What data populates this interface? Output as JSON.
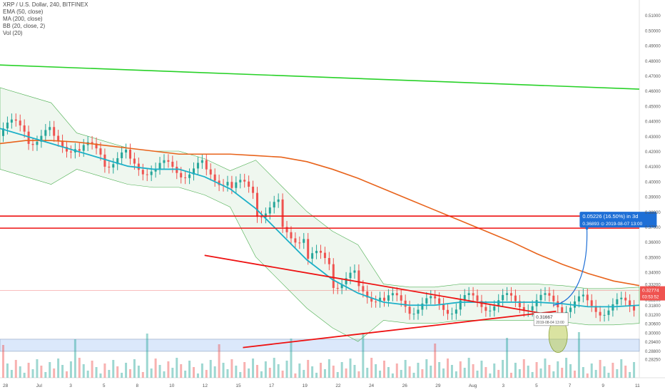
{
  "legend": {
    "title": "XRP / U.S. Dollar, 240, BITFINEX",
    "ema": "EMA (50, close)",
    "ma": "MA (200, close)",
    "bb": "BB (20, close, 2)",
    "vol": "Vol (20)"
  },
  "colors": {
    "bull": "#26a69a",
    "bear": "#ef5350",
    "ema": "#1db0c8",
    "ma": "#e8631b",
    "bb": "#6e4a4a",
    "bbFill": "#4caf5018",
    "green": "#27d127",
    "red": "#ee1111",
    "arc": "#1e6fd6",
    "zone": "#dbe8fb",
    "ellipse": "#b5c844"
  },
  "chart_data": {
    "type": "candlestick",
    "ylim": [
      0.27,
      0.52
    ],
    "y_ticks": [
      "0.27000",
      "0.28250",
      "0.28800",
      "0.29400",
      "0.30000",
      "0.30600",
      "0.31200",
      "0.31800",
      "0.32200",
      "0.32774",
      "0.33200",
      "0.34000",
      "0.35000",
      "0.36000",
      "0.37000",
      "0.38000",
      "0.39000",
      "0.40000",
      "0.41000",
      "0.42000",
      "0.43000",
      "0.44000",
      "0.45000",
      "0.46000",
      "0.47000",
      "0.48000",
      "0.49000",
      "0.50000",
      "0.51000",
      "0.52000"
    ],
    "x_ticks": [
      "28",
      "Jul",
      "3",
      "5",
      "8",
      "10",
      "12",
      "15",
      "17",
      "19",
      "22",
      "24",
      "26",
      "29",
      "Aug",
      "3",
      "5",
      "7",
      "9",
      "11"
    ],
    "last_price": "0.32774",
    "countdown": "03:53:52",
    "annotations": {
      "measure_main": "0.05226 (16.50%) in 3d",
      "measure_sub": "0.36893  ⊙ 2019-08-07  13:00",
      "point_value": "0.31667",
      "point_date": "2019-08-04  13:00"
    },
    "ma200": [
      0.425,
      0.427,
      0.427,
      0.426,
      0.424,
      0.422,
      0.42,
      0.418,
      0.418,
      0.418,
      0.417,
      0.416,
      0.413,
      0.408,
      0.402,
      0.395,
      0.388,
      0.381,
      0.374,
      0.367,
      0.36,
      0.352,
      0.345,
      0.339,
      0.334,
      0.331
    ],
    "ema50": [
      0.435,
      0.43,
      0.425,
      0.42,
      0.415,
      0.41,
      0.408,
      0.408,
      0.403,
      0.395,
      0.382,
      0.365,
      0.348,
      0.335,
      0.326,
      0.32,
      0.318,
      0.318,
      0.32,
      0.32,
      0.32,
      0.32,
      0.319,
      0.317,
      0.317,
      0.318
    ],
    "green_line": [
      0.477,
      0.461
    ],
    "horizontal_levels": [
      0.377,
      0.369
    ],
    "wedge_upper": [
      [
        0.351,
        0.311
      ]
    ],
    "wedge_lower": [
      [
        0.29,
        0.314
      ]
    ],
    "demand_zone": [
      0.2955,
      0.2875
    ]
  }
}
